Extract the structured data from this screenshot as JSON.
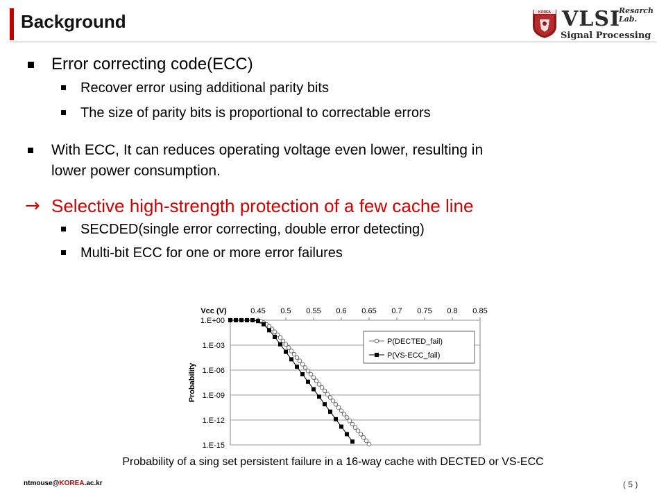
{
  "header": {
    "title": "Background",
    "logo": {
      "main": "VLSI",
      "research": "Resarch",
      "lab": "Lab.",
      "subtitle": "Signal Processing",
      "seal_text": "KOREA"
    }
  },
  "bullets": {
    "ecc": {
      "title": "Error correcting code(ECC)",
      "sub": [
        "Recover error using additional parity bits",
        "The size of parity bits is proportional to correctable errors"
      ]
    },
    "with_ecc_line1": "With ECC, It can reduces operating voltage even lower, resulting in",
    "with_ecc_line2": "lower power consumption.",
    "selective": {
      "title": "Selective high-strength protection of a few cache line",
      "sub": [
        "SECDED(single error correcting, double error detecting)",
        "Multi-bit ECC for one or more error failures"
      ]
    }
  },
  "chart_data": {
    "type": "line",
    "xlabel": "Vcc (V)",
    "ylabel": "Probability",
    "x_ticks": [
      "0.45",
      "0.5",
      "0.55",
      "0.6",
      "0.65",
      "0.7",
      "0.75",
      "0.8",
      "0.85"
    ],
    "y_ticks": [
      "1.E+00",
      "1.E-03",
      "1.E-06",
      "1.E-09",
      "1.E-12",
      "1.E-15"
    ],
    "xlim": [
      0.4,
      0.85
    ],
    "ylim_log10": [
      -15,
      0
    ],
    "x_axis_position": "top",
    "grid": true,
    "legend_position": "top-right",
    "series": [
      {
        "name": "P(DECTED_fail)",
        "marker": "open-circle",
        "color": "#707070",
        "points": [
          [
            0.4,
            0
          ],
          [
            0.41,
            0
          ],
          [
            0.42,
            0
          ],
          [
            0.43,
            0
          ],
          [
            0.44,
            0
          ],
          [
            0.45,
            -0.05
          ],
          [
            0.455,
            -0.15
          ],
          [
            0.46,
            -0.3
          ],
          [
            0.465,
            -0.5
          ],
          [
            0.47,
            -0.75
          ],
          [
            0.475,
            -1.05
          ],
          [
            0.48,
            -1.4
          ],
          [
            0.485,
            -1.75
          ],
          [
            0.49,
            -2.1
          ],
          [
            0.495,
            -2.5
          ],
          [
            0.5,
            -2.9
          ],
          [
            0.505,
            -3.3
          ],
          [
            0.51,
            -3.7
          ],
          [
            0.515,
            -4.1
          ],
          [
            0.52,
            -4.5
          ],
          [
            0.525,
            -4.9
          ],
          [
            0.53,
            -5.3
          ],
          [
            0.535,
            -5.7
          ],
          [
            0.54,
            -6.1
          ],
          [
            0.545,
            -6.5
          ],
          [
            0.55,
            -6.9
          ],
          [
            0.555,
            -7.3
          ],
          [
            0.56,
            -7.7
          ],
          [
            0.565,
            -8.1
          ],
          [
            0.57,
            -8.5
          ],
          [
            0.575,
            -8.9
          ],
          [
            0.58,
            -9.3
          ],
          [
            0.585,
            -9.7
          ],
          [
            0.59,
            -10.1
          ],
          [
            0.595,
            -10.5
          ],
          [
            0.6,
            -10.9
          ],
          [
            0.605,
            -11.3
          ],
          [
            0.61,
            -11.7
          ],
          [
            0.615,
            -12.1
          ],
          [
            0.62,
            -12.5
          ],
          [
            0.625,
            -12.9
          ],
          [
            0.63,
            -13.3
          ],
          [
            0.635,
            -13.7
          ],
          [
            0.64,
            -14.1
          ],
          [
            0.645,
            -14.5
          ],
          [
            0.65,
            -14.9
          ]
        ]
      },
      {
        "name": "P(VS-ECC_fail)",
        "marker": "filled-square",
        "color": "#000000",
        "points": [
          [
            0.4,
            0
          ],
          [
            0.41,
            0
          ],
          [
            0.42,
            0
          ],
          [
            0.43,
            0
          ],
          [
            0.44,
            0
          ],
          [
            0.45,
            -0.1
          ],
          [
            0.46,
            -0.5
          ],
          [
            0.47,
            -1.2
          ],
          [
            0.48,
            -2.0
          ],
          [
            0.49,
            -2.9
          ],
          [
            0.5,
            -3.8
          ],
          [
            0.51,
            -4.7
          ],
          [
            0.52,
            -5.6
          ],
          [
            0.53,
            -6.5
          ],
          [
            0.54,
            -7.4
          ],
          [
            0.55,
            -8.3
          ],
          [
            0.56,
            -9.2
          ],
          [
            0.57,
            -10.1
          ],
          [
            0.58,
            -11.0
          ],
          [
            0.59,
            -11.9
          ],
          [
            0.6,
            -12.8
          ],
          [
            0.61,
            -13.7
          ],
          [
            0.62,
            -14.6
          ]
        ]
      }
    ]
  },
  "caption": "Probability of a sing set persistent failure in a 16-way cache with DECTED or VS-ECC",
  "footer": {
    "email_prefix": "ntmouse@",
    "email_highlight": "KOREA",
    "email_suffix": ".ac.kr",
    "page": "( 5 )"
  }
}
